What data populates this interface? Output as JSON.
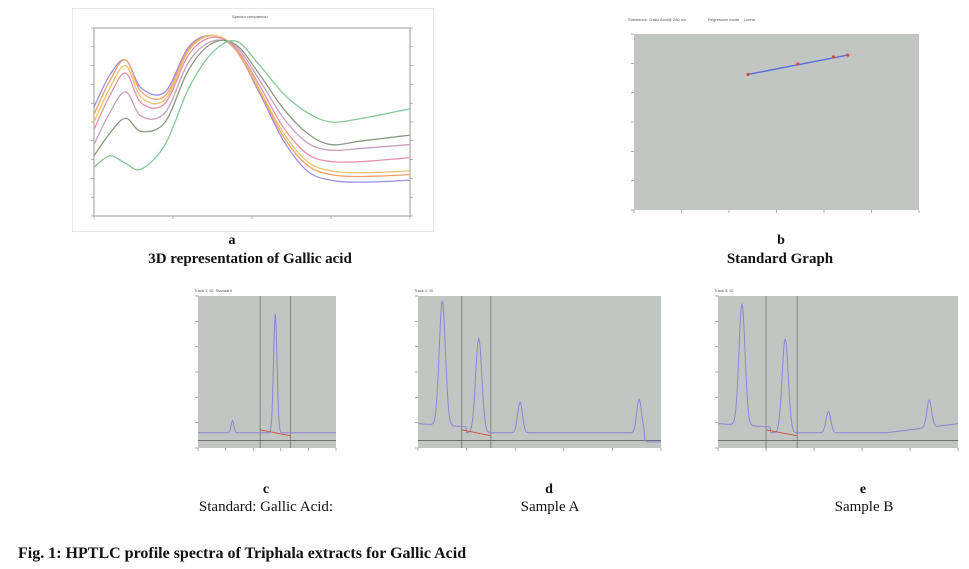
{
  "figure": {
    "caption": "Fig. 1: HPTLC profile spectra of Triphala extracts for Gallic Acid"
  },
  "panels": {
    "a": {
      "letter": "a",
      "label": "3D representation of Gallic acid",
      "header": "Spectra comparison"
    },
    "b": {
      "letter": "b",
      "label": "Standard Graph",
      "header_left": "Substance: Gallic Acid@ 280 nm",
      "header_mid": "Regression mode",
      "header_right": "Linear"
    },
    "c": {
      "letter": "c",
      "label": "Standard: Gallic Acid:",
      "header": "Track 1, ID: Standard"
    },
    "d": {
      "letter": "d",
      "label": "Sample A",
      "header": "Track 2, ID"
    },
    "e": {
      "letter": "e",
      "label": "Sample B",
      "header": "Track 3, ID"
    }
  },
  "colors": {
    "plot_bg": "#c2c6c2",
    "trace": "#8a86d6",
    "baseline": "#d44a3a",
    "regression": "#5a6ee0",
    "axis": "#555555"
  },
  "chart_data": [
    {
      "type": "line",
      "id": "a",
      "x": [
        200,
        250,
        300,
        350,
        400
      ],
      "xlim": [
        200,
        400
      ],
      "ylim": [
        0,
        100
      ],
      "series": [
        {
          "color": "#9b8fe8",
          "values": [
            [
              200,
              58
            ],
            [
              210,
              75
            ],
            [
              220,
              83
            ],
            [
              230,
              68
            ],
            [
              245,
              66
            ],
            [
              260,
              90
            ],
            [
              275,
              96
            ],
            [
              290,
              88
            ],
            [
              305,
              65
            ],
            [
              320,
              40
            ],
            [
              335,
              24
            ],
            [
              350,
              19
            ],
            [
              370,
              18
            ],
            [
              400,
              19
            ]
          ]
        },
        {
          "color": "#f2a06a",
          "values": [
            [
              200,
              54
            ],
            [
              210,
              72
            ],
            [
              220,
              83
            ],
            [
              230,
              66
            ],
            [
              245,
              64
            ],
            [
              260,
              89
            ],
            [
              275,
              96
            ],
            [
              290,
              88
            ],
            [
              305,
              66
            ],
            [
              320,
              42
            ],
            [
              335,
              27
            ],
            [
              350,
              22
            ],
            [
              370,
              21
            ],
            [
              400,
              22
            ]
          ]
        },
        {
          "color": "#e7c56b",
          "values": [
            [
              200,
              50
            ],
            [
              210,
              68
            ],
            [
              220,
              80
            ],
            [
              230,
              63
            ],
            [
              245,
              62
            ],
            [
              260,
              88
            ],
            [
              275,
              96
            ],
            [
              290,
              89
            ],
            [
              305,
              67
            ],
            [
              320,
              44
            ],
            [
              335,
              29
            ],
            [
              350,
              24
            ],
            [
              370,
              23
            ],
            [
              400,
              24
            ]
          ]
        },
        {
          "color": "#e88fa8",
          "values": [
            [
              200,
              46
            ],
            [
              210,
              64
            ],
            [
              220,
              76
            ],
            [
              230,
              60
            ],
            [
              245,
              60
            ],
            [
              260,
              86
            ],
            [
              275,
              95
            ],
            [
              290,
              89
            ],
            [
              305,
              69
            ],
            [
              320,
              47
            ],
            [
              335,
              33
            ],
            [
              350,
              29
            ],
            [
              370,
              29
            ],
            [
              400,
              31
            ]
          ]
        },
        {
          "color": "#c8a0b8",
          "values": [
            [
              200,
              38
            ],
            [
              210,
              55
            ],
            [
              220,
              66
            ],
            [
              230,
              53
            ],
            [
              245,
              55
            ],
            [
              260,
              82
            ],
            [
              275,
              93
            ],
            [
              290,
              90
            ],
            [
              305,
              72
            ],
            [
              320,
              52
            ],
            [
              335,
              39
            ],
            [
              350,
              35
            ],
            [
              370,
              36
            ],
            [
              400,
              38
            ]
          ]
        },
        {
          "color": "#8a9a80",
          "values": [
            [
              200,
              32
            ],
            [
              210,
              44
            ],
            [
              220,
              52
            ],
            [
              230,
              45
            ],
            [
              245,
              50
            ],
            [
              260,
              78
            ],
            [
              275,
              92
            ],
            [
              290,
              91
            ],
            [
              305,
              75
            ],
            [
              320,
              57
            ],
            [
              335,
              44
            ],
            [
              350,
              38
            ],
            [
              370,
              40
            ],
            [
              400,
              43
            ]
          ]
        },
        {
          "color": "#86c896",
          "values": [
            [
              200,
              26
            ],
            [
              210,
              32
            ],
            [
              220,
              28
            ],
            [
              230,
              25
            ],
            [
              245,
              38
            ],
            [
              260,
              68
            ],
            [
              275,
              87
            ],
            [
              290,
              93
            ],
            [
              305,
              80
            ],
            [
              320,
              65
            ],
            [
              335,
              55
            ],
            [
              350,
              50
            ],
            [
              370,
              52
            ],
            [
              400,
              57
            ]
          ]
        }
      ],
      "title": "Spectra comparison"
    },
    {
      "type": "scatter",
      "id": "b",
      "points": [
        [
          760,
          77
        ],
        [
          830,
          83
        ],
        [
          880,
          87
        ],
        [
          900,
          88
        ]
      ],
      "xlim": [
        600,
        1000
      ],
      "ylim": [
        0,
        100
      ],
      "grid": false
    },
    {
      "type": "line",
      "id": "c",
      "peaks": [
        {
          "rf": 0.25,
          "height": 8
        },
        {
          "rf": 0.56,
          "height": 78
        }
      ],
      "baseline": 10,
      "xlim": [
        0,
        1
      ],
      "ylim": [
        0,
        100
      ]
    },
    {
      "type": "line",
      "id": "d",
      "peaks": [
        {
          "rf": 0.1,
          "height": 82
        },
        {
          "rf": 0.25,
          "height": 62
        },
        {
          "rf": 0.42,
          "height": 20
        },
        {
          "rf": 0.91,
          "height": 22
        }
      ],
      "baseline": 10,
      "xlim": [
        0,
        1
      ],
      "ylim": [
        0,
        100
      ]
    },
    {
      "type": "line",
      "id": "e",
      "peaks": [
        {
          "rf": 0.1,
          "height": 80
        },
        {
          "rf": 0.28,
          "height": 62
        },
        {
          "rf": 0.46,
          "height": 14
        },
        {
          "rf": 0.88,
          "height": 18
        }
      ],
      "baseline": 10,
      "xlim": [
        0,
        1
      ],
      "ylim": [
        0,
        100
      ]
    }
  ]
}
